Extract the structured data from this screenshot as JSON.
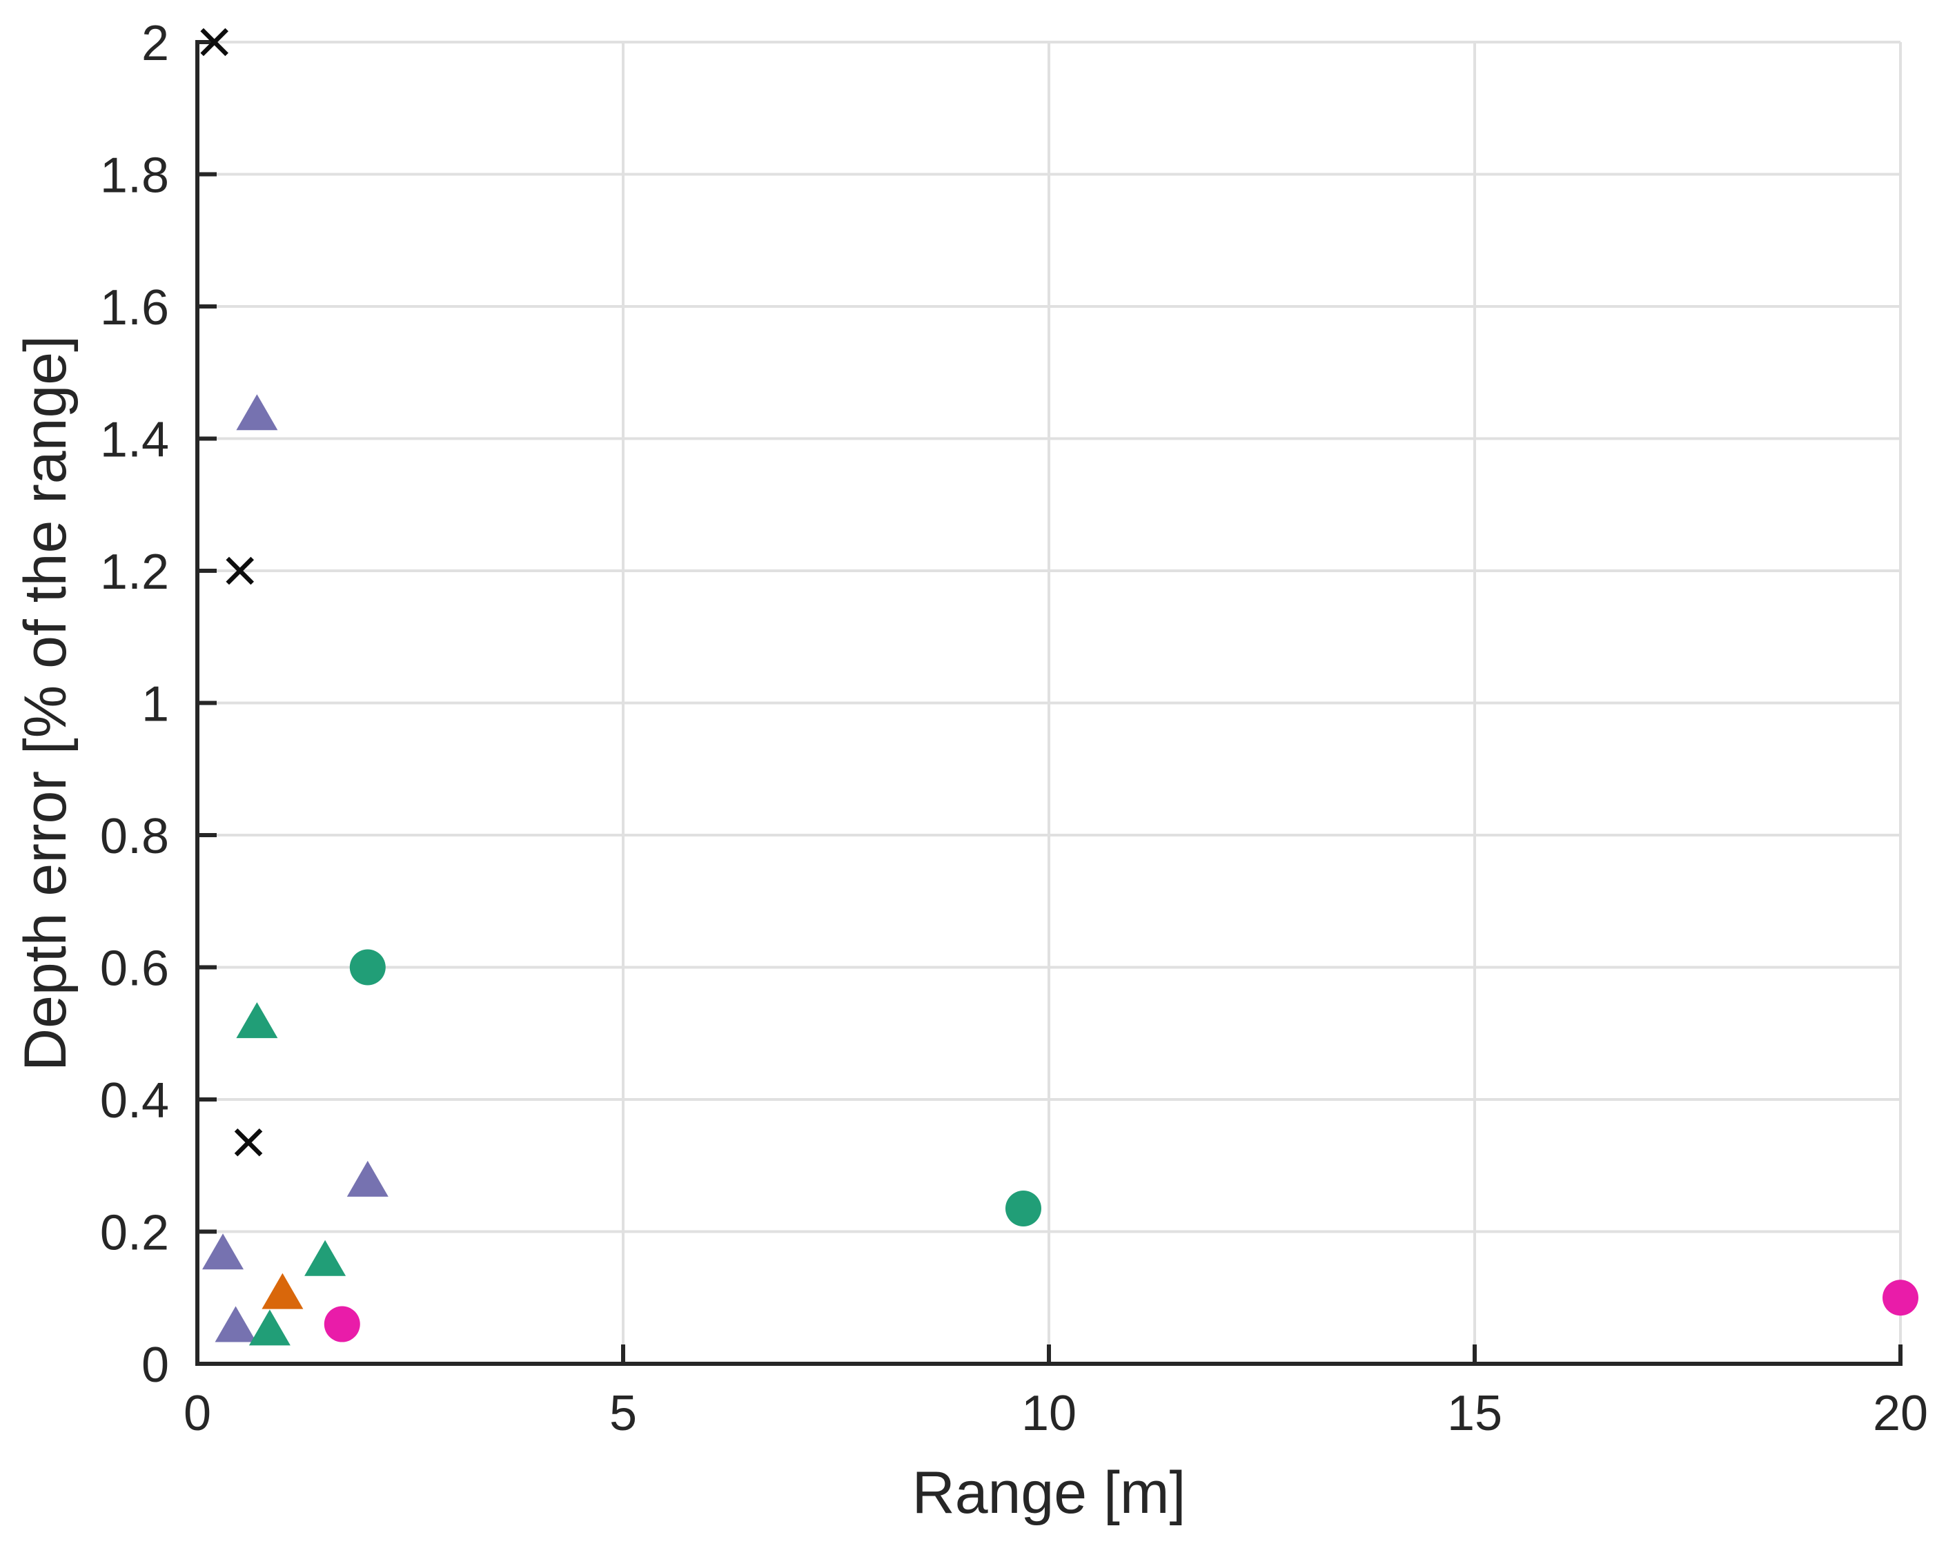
{
  "figure": {
    "background_color": "#ffffff",
    "axis_color": "#262626",
    "grid_color": "#e0e0e0"
  },
  "chart_data": {
    "type": "scatter",
    "title": "",
    "xlabel": "Range [m]",
    "ylabel": "Depth error [% of the range]",
    "xlim": [
      0,
      20
    ],
    "ylim": [
      0,
      2
    ],
    "xticks": [
      0,
      5,
      10,
      15,
      20
    ],
    "xtick_labels": [
      "0",
      "5",
      "10",
      "15",
      "20"
    ],
    "yticks": [
      0,
      0.2,
      0.4,
      0.6,
      0.8,
      1,
      1.2,
      1.4,
      1.6,
      1.8,
      2
    ],
    "ytick_labels": [
      "0",
      "0.2",
      "0.4",
      "0.6",
      "0.8",
      "1",
      "1.2",
      "1.4",
      "1.6",
      "1.8",
      "2"
    ],
    "grid": true,
    "legend": false,
    "series": [
      {
        "name": "black-cross-markers",
        "marker": "cross",
        "color": "#0d0d0d",
        "points": [
          [
            0.2,
            2.0
          ],
          [
            0.5,
            1.2
          ],
          [
            0.6,
            0.335
          ]
        ]
      },
      {
        "name": "purple-triangle-markers",
        "marker": "triangle",
        "color": "#7672b0",
        "points": [
          [
            0.7,
            1.44
          ],
          [
            2.0,
            0.28
          ],
          [
            0.3,
            0.17
          ],
          [
            0.45,
            0.06
          ]
        ]
      },
      {
        "name": "green-triangle-markers",
        "marker": "triangle",
        "color": "#219e77",
        "points": [
          [
            0.7,
            0.52
          ],
          [
            1.5,
            0.16
          ],
          [
            0.85,
            0.055
          ]
        ]
      },
      {
        "name": "orange-triangle-markers",
        "marker": "triangle",
        "color": "#d9670b",
        "points": [
          [
            1.0,
            0.11
          ]
        ]
      },
      {
        "name": "green-circle-markers",
        "marker": "circle",
        "color": "#219e77",
        "points": [
          [
            2.0,
            0.6
          ],
          [
            9.7,
            0.235
          ]
        ]
      },
      {
        "name": "magenta-circle-markers",
        "marker": "circle",
        "color": "#e91ca9",
        "points": [
          [
            1.7,
            0.06
          ],
          [
            20.0,
            0.1
          ]
        ]
      }
    ]
  }
}
